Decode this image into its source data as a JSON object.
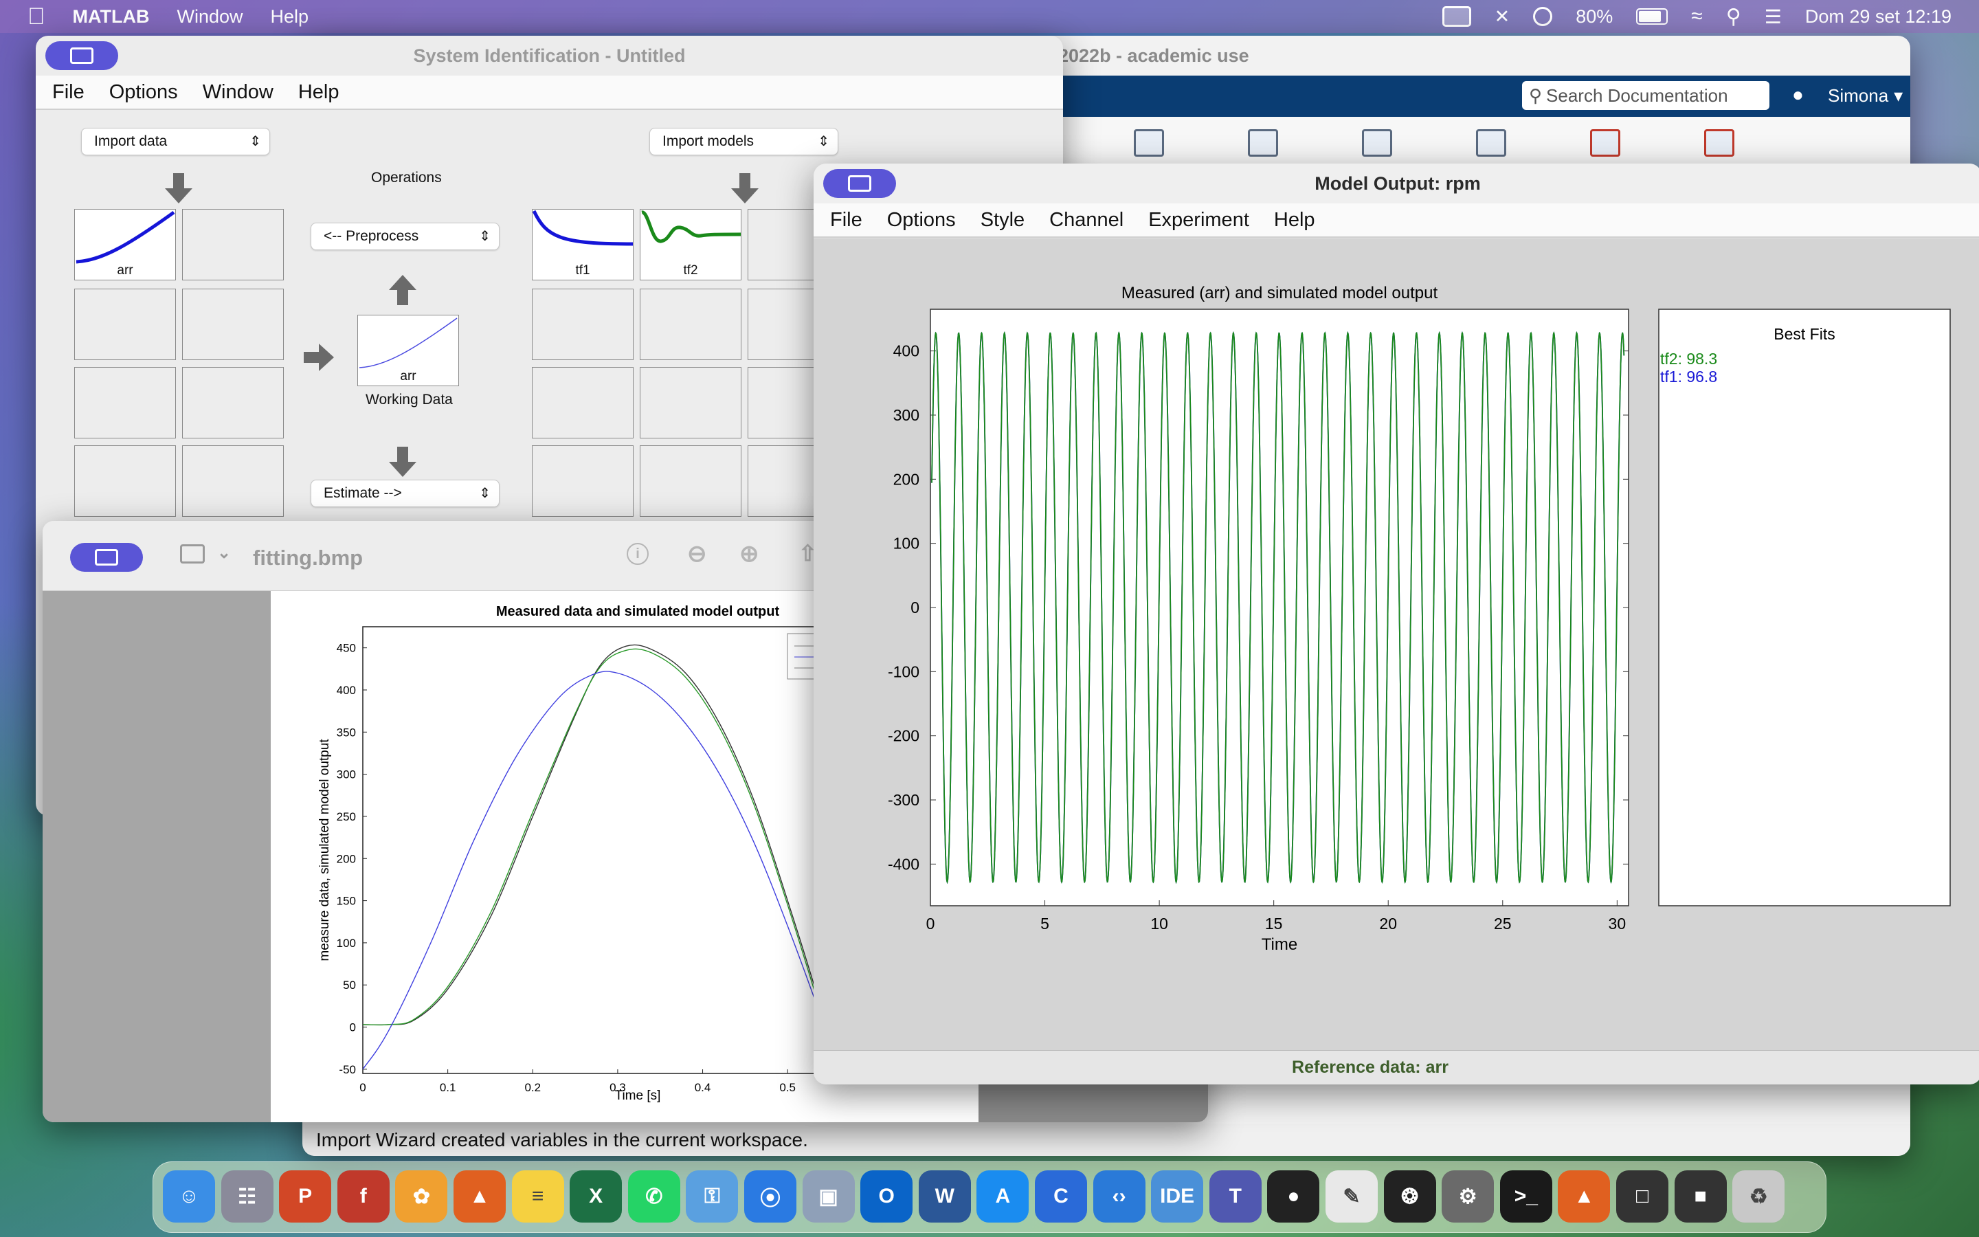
{
  "menubar": {
    "app": "MATLAB",
    "window": "Window",
    "help": "Help",
    "battery": "80%",
    "datetime": "Dom 29 set  12:19"
  },
  "matlab_main": {
    "title": "2022b - academic use",
    "search_placeholder": "Search Documentation",
    "user": "Simona",
    "status": "Import Wizard created variables in the current workspace."
  },
  "sysid": {
    "title": "System Identification - Untitled",
    "menu": [
      "File",
      "Options",
      "Window",
      "Help"
    ],
    "import_data": "Import data",
    "import_models": "Import models",
    "operations": "Operations",
    "preprocess": "<-- Preprocess",
    "estimate": "Estimate -->",
    "working_data_label": "arr",
    "working_data_caption": "Working Data",
    "data_cell_label": "arr",
    "model1": "tf1",
    "model2": "tf2"
  },
  "preview": {
    "filename": "fitting.bmp",
    "chart_title": "Measured data and simulated model output",
    "xlabel": "Time [s]",
    "ylabel": "measure data, simulated model output",
    "xticks": [
      "0",
      "0.1",
      "0.2",
      "0.3",
      "0.4",
      "0.5"
    ],
    "yticks": [
      "450",
      "400",
      "350",
      "300",
      "250",
      "200",
      "150",
      "100",
      "50",
      "0",
      "-50"
    ]
  },
  "model_output": {
    "title": "Model Output: rpm",
    "menu": [
      "File",
      "Options",
      "Style",
      "Channel",
      "Experiment",
      "Help"
    ],
    "plot_title": "Measured (arr) and simulated model output",
    "xlabel": "Time",
    "xticks": [
      "0",
      "5",
      "10",
      "15",
      "20",
      "25",
      "30"
    ],
    "yticks": [
      "400",
      "300",
      "200",
      "100",
      "0",
      "-100",
      "-200",
      "-300",
      "-400"
    ],
    "best_fits_title": "Best Fits",
    "fit_tf2": "tf2: 98.3",
    "fit_tf1": "tf1: 96.8",
    "footer": "Reference data:  arr",
    "colors": {
      "tf2": "#1a8a1a",
      "tf1": "#1a1ad6"
    }
  },
  "chart_data": [
    {
      "type": "line",
      "title": "Measured (arr) and simulated model output",
      "xlabel": "Time",
      "ylabel": "",
      "xlim": [
        0,
        30.5
      ],
      "ylim": [
        -465,
        465
      ],
      "series": [
        {
          "name": "tf2",
          "amplitude": 428,
          "cycles": 30,
          "color": "#1a8a1a"
        },
        {
          "name": "tf1",
          "amplitude": 428,
          "cycles": 30,
          "color": "#1a1ad6"
        }
      ]
    },
    {
      "type": "line",
      "title": "Measured data and simulated model output",
      "xlabel": "Time [s]",
      "ylabel": "measure data, simulated model output",
      "xlim": [
        0,
        0.55
      ],
      "ylim": [
        -55,
        475
      ],
      "series": [
        {
          "color": "#333333",
          "x": [
            0,
            0.03,
            0.06,
            0.1,
            0.15,
            0.2,
            0.25,
            0.28,
            0.31,
            0.34,
            0.38,
            0.42,
            0.46,
            0.5,
            0.54,
            0.56
          ],
          "y": [
            3,
            3,
            8,
            45,
            130,
            250,
            370,
            430,
            452,
            448,
            420,
            360,
            270,
            150,
            20,
            -55
          ]
        },
        {
          "color": "#2a9a2a",
          "x": [
            0,
            0.03,
            0.06,
            0.1,
            0.15,
            0.2,
            0.25,
            0.28,
            0.31,
            0.34,
            0.38,
            0.42,
            0.46,
            0.5,
            0.54,
            0.56
          ],
          "y": [
            3,
            3,
            9,
            48,
            135,
            255,
            372,
            428,
            447,
            444,
            415,
            355,
            265,
            145,
            15,
            -55
          ]
        },
        {
          "color": "#4040e0",
          "x": [
            0,
            0.03,
            0.08,
            0.13,
            0.18,
            0.23,
            0.27,
            0.3,
            0.34,
            0.38,
            0.42,
            0.46,
            0.5,
            0.54,
            0.56
          ],
          "y": [
            -50,
            -5,
            100,
            220,
            320,
            390,
            418,
            420,
            400,
            360,
            300,
            220,
            120,
            10,
            -50
          ]
        }
      ]
    }
  ],
  "dock": [
    "Finder",
    "Launchpad",
    "PowerPoint",
    "Frontline",
    "Photos",
    "MATLAB",
    "Notes",
    "Excel",
    "WhatsApp",
    "Keychain",
    "Safari",
    "Preview",
    "Outlook",
    "Word",
    "App Store",
    "C",
    "VS Code",
    "IDE",
    "Teams",
    "GitHub",
    "TextEdit",
    "ChatGPT",
    "Settings",
    "Terminal",
    "MATLAB",
    "Window1",
    "Window2",
    "Trash"
  ]
}
